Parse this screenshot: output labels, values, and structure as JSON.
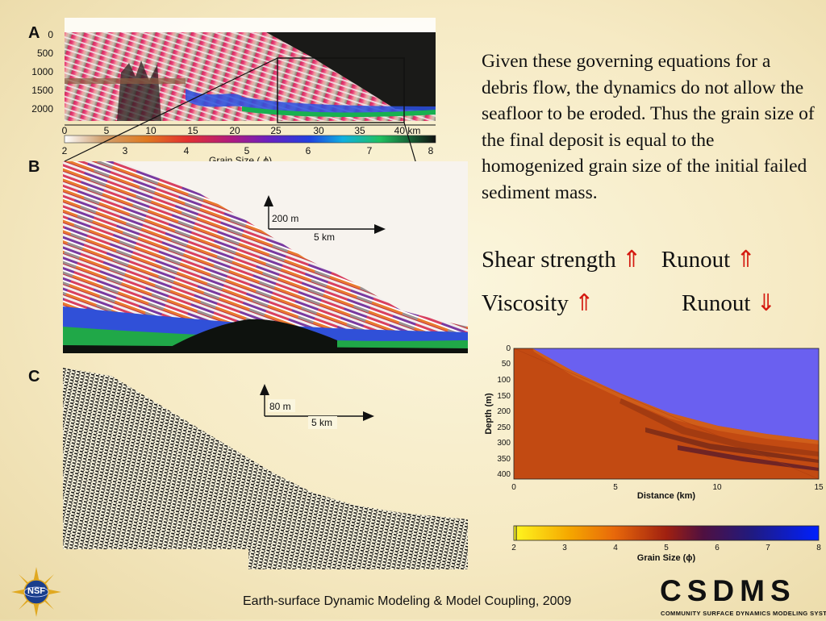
{
  "panels": {
    "a": {
      "letter": "A",
      "depth_ticks": [
        "0",
        "500",
        "1000",
        "1500",
        "2000"
      ],
      "distance_ticks": [
        "0",
        "5",
        "10",
        "15",
        "20",
        "25",
        "30",
        "35",
        "40 km"
      ],
      "grain_ticks": [
        "2",
        "3",
        "4",
        "5",
        "6",
        "7",
        "8"
      ],
      "grain_label_prefix": "Grain Size (",
      "grain_label_symbol": "ϕ",
      "grain_label_suffix": ")"
    },
    "b": {
      "letter": "B",
      "scale_vertical": "200  m",
      "scale_horizontal": "5 km"
    },
    "c": {
      "letter": "C",
      "scale_vertical": "80 m",
      "scale_horizontal": "5 km"
    }
  },
  "text": {
    "paragraph": "Given these governing equations for a debris flow, the dynamics do not allow the seafloor to be eroded. Thus the grain size of the final deposit is equal to the homogenized grain size of the initial failed sediment mass.",
    "shear_label": "Shear strength",
    "shear_arrow": "⇑",
    "runout_label_1": "Runout",
    "runout_arrow_1": "⇑",
    "viscosity_label": "Viscosity",
    "viscosity_arrow": "⇑",
    "runout_label_2": "Runout",
    "runout_arrow_2": "⇓"
  },
  "model_plot": {
    "ylabel": "Depth (m)",
    "xlabel": "Distance (km)",
    "y_ticks": [
      "0",
      "50",
      "100",
      "150",
      "200",
      "250",
      "300",
      "350",
      "400"
    ],
    "x_ticks": [
      "0",
      "5",
      "10",
      "15"
    ],
    "colorbar_ticks": [
      "2",
      "3",
      "4",
      "5",
      "6",
      "7",
      "8"
    ],
    "colorbar_label": "Grain Size (ϕ)"
  },
  "footer": {
    "text": "Earth-surface Dynamic Modeling & Model Coupling, 2009"
  },
  "logos": {
    "nsf_text": "NSF",
    "csdms_letters": "CSDMS",
    "csdms_subtitle": "COMMUNITY SURFACE DYNAMICS MODELING SYSTEM"
  },
  "colors": {
    "accent_arrow": "#d41a10",
    "water": "#6a60f0",
    "sediment": "#c24a12"
  }
}
